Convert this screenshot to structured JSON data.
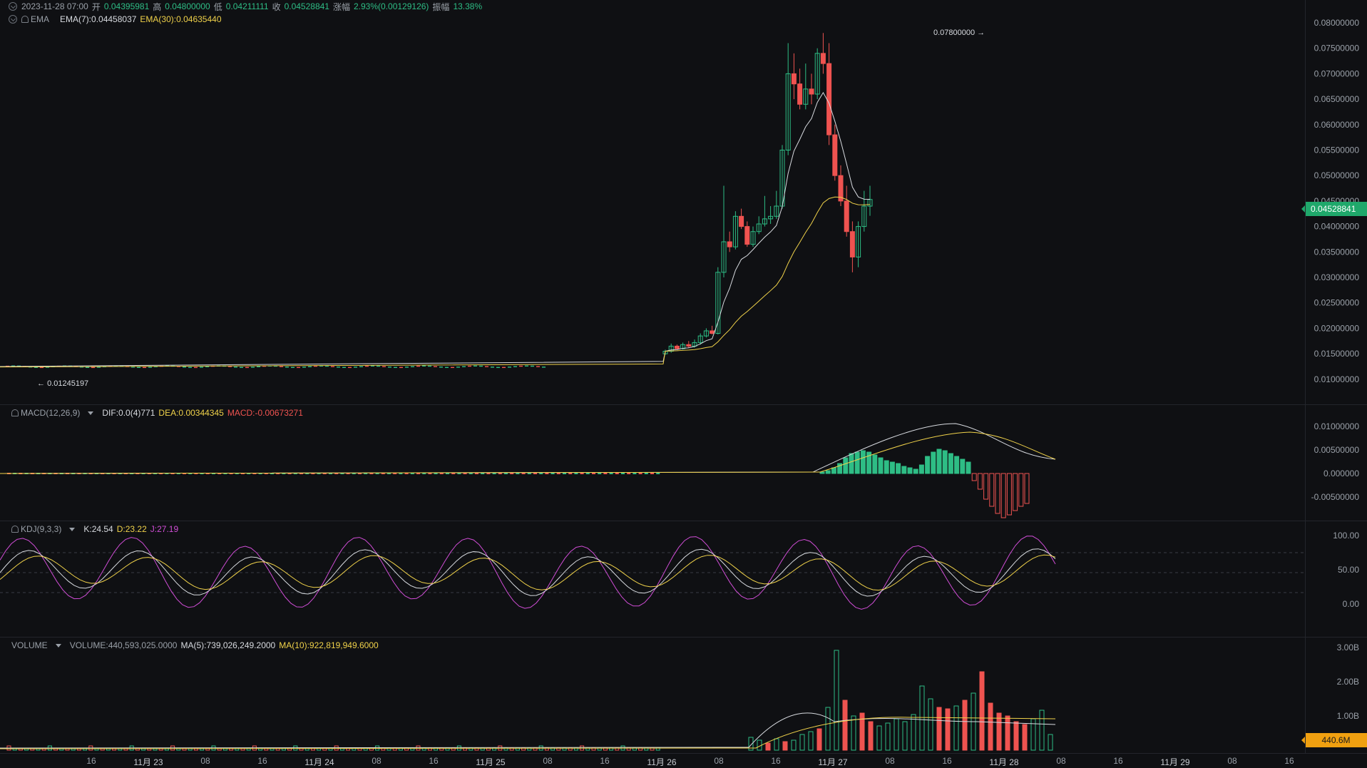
{
  "price_panel": {
    "legend": {
      "date": "2023-11-28 07:00",
      "open_label": "开",
      "open": "0.04395981",
      "high_label": "高",
      "high": "0.04800000",
      "low_label": "低",
      "low": "0.04211111",
      "close_label": "收",
      "close": "0.04528841",
      "change_label": "涨幅",
      "change": "2.93%(0.00129126)",
      "amplitude_label": "振幅",
      "amplitude": "13.38%"
    },
    "ema_legend": {
      "name": "EMA",
      "ema7": "EMA(7):0.04458037",
      "ema30": "EMA(30):0.04635440"
    },
    "y_ticks": [
      "0.08000000",
      "0.07500000",
      "0.07000000",
      "0.06500000",
      "0.06000000",
      "0.05500000",
      "0.05000000",
      "0.04500000",
      "0.04000000",
      "0.03500000",
      "0.03000000",
      "0.02500000",
      "0.02000000",
      "0.01500000",
      "0.01000000"
    ],
    "last_price": "0.04528841",
    "high_marker": "0.07800000",
    "low_marker": "0.01245197"
  },
  "macd_panel": {
    "name": "MACD(12,26,9)",
    "dif": "DIF:0.0(4)771",
    "dea": "DEA:0.00344345",
    "macd": "MACD:-0.00673271",
    "y_ticks": [
      "0.01000000",
      "0.00500000",
      "0.000000",
      "-0.00500000"
    ]
  },
  "kdj_panel": {
    "name": "KDJ(9,3,3)",
    "k": "K:24.54",
    "d": "D:23.22",
    "j": "J:27.19",
    "y_ticks": [
      "100.00",
      "50.00",
      "0.00"
    ]
  },
  "volume_panel": {
    "name": "VOLUME",
    "volume": "VOLUME:440,593,025.0000",
    "ma5": "MA(5):739,026,249.2000",
    "ma10": "MA(10):922,819,949.6000",
    "y_ticks": [
      "3.00B",
      "2.00B",
      "1.00B"
    ],
    "last_volume": "440.6M"
  },
  "x_axis": {
    "labels": [
      "16",
      "11月 23",
      "08",
      "16",
      "11月 24",
      "08",
      "16",
      "11月 25",
      "08",
      "16",
      "11月 26",
      "08",
      "16",
      "11月 27",
      "08",
      "16",
      "11月 28",
      "08",
      "16",
      "11月 29",
      "08",
      "16"
    ]
  },
  "colors": {
    "up": "#2ebd85",
    "down": "#ef5350",
    "ema7": "#d8dbe0",
    "ema30": "#f0d24a",
    "kdj_j": "#d04dd6"
  },
  "chart_data": {
    "type": "candlestick",
    "timeframe": "1h",
    "ylim": [
      0.008,
      0.082
    ],
    "ohlc_visible_recent": [
      {
        "o": 0.015,
        "h": 0.0158,
        "l": 0.0148,
        "c": 0.0155
      },
      {
        "o": 0.0155,
        "h": 0.017,
        "l": 0.0152,
        "c": 0.0165
      },
      {
        "o": 0.0165,
        "h": 0.0168,
        "l": 0.0158,
        "c": 0.016
      },
      {
        "o": 0.016,
        "h": 0.0172,
        "l": 0.0158,
        "c": 0.0168
      },
      {
        "o": 0.0168,
        "h": 0.0175,
        "l": 0.0162,
        "c": 0.0165
      },
      {
        "o": 0.0165,
        "h": 0.0178,
        "l": 0.0162,
        "c": 0.0172
      },
      {
        "o": 0.0172,
        "h": 0.019,
        "l": 0.0168,
        "c": 0.0185
      },
      {
        "o": 0.0185,
        "h": 0.02,
        "l": 0.0182,
        "c": 0.0195
      },
      {
        "o": 0.0195,
        "h": 0.0205,
        "l": 0.0188,
        "c": 0.019
      },
      {
        "o": 0.019,
        "h": 0.032,
        "l": 0.0188,
        "c": 0.031
      },
      {
        "o": 0.031,
        "h": 0.048,
        "l": 0.03,
        "c": 0.037
      },
      {
        "o": 0.037,
        "h": 0.039,
        "l": 0.035,
        "c": 0.036
      },
      {
        "o": 0.036,
        "h": 0.043,
        "l": 0.0355,
        "c": 0.042
      },
      {
        "o": 0.042,
        "h": 0.0435,
        "l": 0.0395,
        "c": 0.04
      },
      {
        "o": 0.04,
        "h": 0.041,
        "l": 0.036,
        "c": 0.0365
      },
      {
        "o": 0.0365,
        "h": 0.04,
        "l": 0.036,
        "c": 0.039
      },
      {
        "o": 0.039,
        "h": 0.042,
        "l": 0.0385,
        "c": 0.0405
      },
      {
        "o": 0.0405,
        "h": 0.046,
        "l": 0.04,
        "c": 0.0415
      },
      {
        "o": 0.0415,
        "h": 0.044,
        "l": 0.0405,
        "c": 0.042
      },
      {
        "o": 0.042,
        "h": 0.047,
        "l": 0.0415,
        "c": 0.044
      },
      {
        "o": 0.044,
        "h": 0.056,
        "l": 0.0435,
        "c": 0.055
      },
      {
        "o": 0.055,
        "h": 0.076,
        "l": 0.054,
        "c": 0.07
      },
      {
        "o": 0.07,
        "h": 0.074,
        "l": 0.065,
        "c": 0.068
      },
      {
        "o": 0.068,
        "h": 0.071,
        "l": 0.063,
        "c": 0.064
      },
      {
        "o": 0.064,
        "h": 0.072,
        "l": 0.063,
        "c": 0.067
      },
      {
        "o": 0.067,
        "h": 0.07,
        "l": 0.064,
        "c": 0.066
      },
      {
        "o": 0.066,
        "h": 0.075,
        "l": 0.065,
        "c": 0.074
      },
      {
        "o": 0.074,
        "h": 0.078,
        "l": 0.07,
        "c": 0.072
      },
      {
        "o": 0.072,
        "h": 0.076,
        "l": 0.056,
        "c": 0.058
      },
      {
        "o": 0.058,
        "h": 0.06,
        "l": 0.049,
        "c": 0.05
      },
      {
        "o": 0.05,
        "h": 0.052,
        "l": 0.044,
        "c": 0.045
      },
      {
        "o": 0.045,
        "h": 0.048,
        "l": 0.038,
        "c": 0.039
      },
      {
        "o": 0.039,
        "h": 0.041,
        "l": 0.031,
        "c": 0.034
      },
      {
        "o": 0.034,
        "h": 0.041,
        "l": 0.032,
        "c": 0.04
      },
      {
        "o": 0.04,
        "h": 0.047,
        "l": 0.039,
        "c": 0.044
      },
      {
        "o": 0.044,
        "h": 0.048,
        "l": 0.0421,
        "c": 0.0453
      }
    ]
  }
}
